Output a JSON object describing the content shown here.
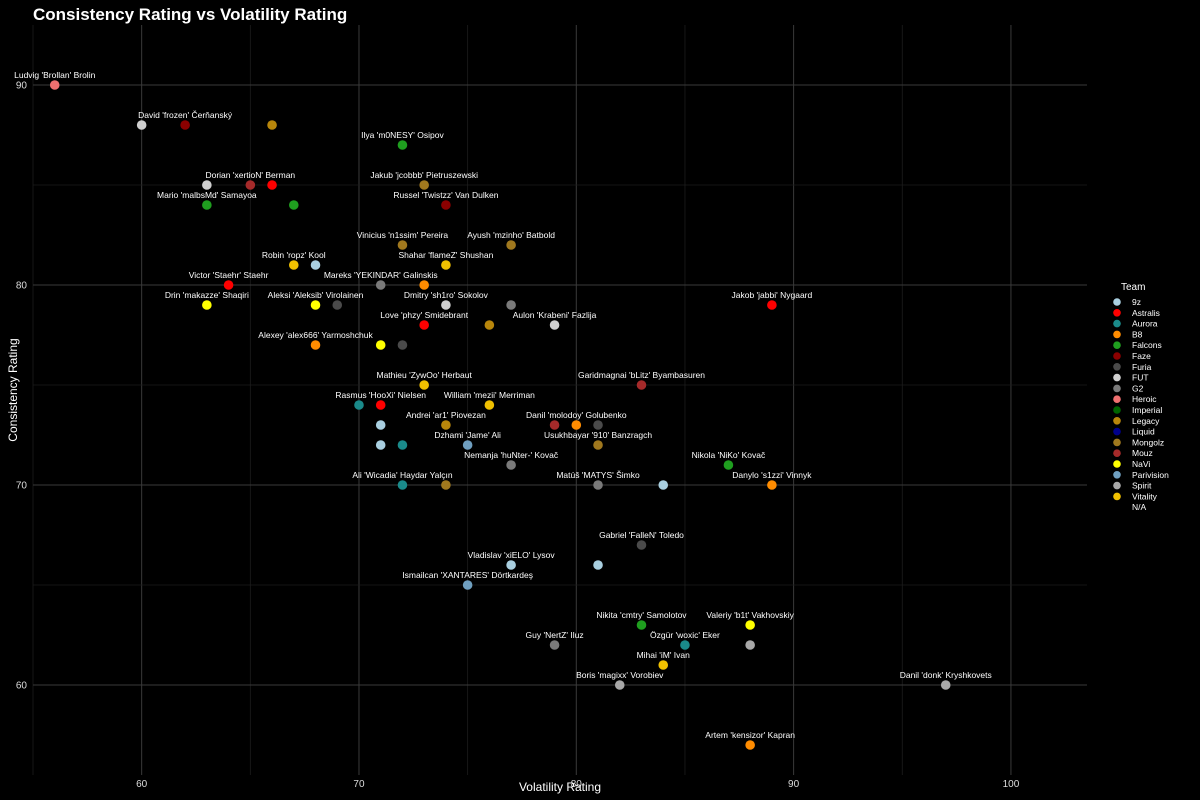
{
  "chart_data": {
    "type": "scatter",
    "title": "Consistency Rating vs Volatility Rating",
    "xlabel": "Volatility Rating",
    "ylabel": "Consistency Rating",
    "xlim": [
      55,
      103.5
    ],
    "ylim": [
      55.5,
      93
    ],
    "xticks": [
      60,
      70,
      80,
      90,
      100
    ],
    "yticks": [
      60,
      70,
      80,
      90
    ],
    "grid": true,
    "legend": {
      "title": "Team",
      "placement": "right",
      "entries": [
        {
          "name": "9z",
          "color": "#a9cfe0"
        },
        {
          "name": "Astralis",
          "color": "#ff0000"
        },
        {
          "name": "Aurora",
          "color": "#1a8a8a"
        },
        {
          "name": "B8",
          "color": "#ff8c00"
        },
        {
          "name": "Falcons",
          "color": "#1f9e1f"
        },
        {
          "name": "Faze",
          "color": "#8b0000"
        },
        {
          "name": "Furia",
          "color": "#4a4a4a"
        },
        {
          "name": "FUT",
          "color": "#cfcfcf"
        },
        {
          "name": "G2",
          "color": "#7a7a7a"
        },
        {
          "name": "Heroic",
          "color": "#f07070"
        },
        {
          "name": "Imperial",
          "color": "#006400"
        },
        {
          "name": "Legacy",
          "color": "#b8860b"
        },
        {
          "name": "Liquid",
          "color": "#00008b"
        },
        {
          "name": "Mongolz",
          "color": "#a0781e"
        },
        {
          "name": "Mouz",
          "color": "#a52a2a"
        },
        {
          "name": "NaVi",
          "color": "#ffff00"
        },
        {
          "name": "Parivision",
          "color": "#6f9fc0"
        },
        {
          "name": "Spirit",
          "color": "#a8a8a8"
        },
        {
          "name": "Vitality",
          "color": "#f0c000"
        },
        {
          "name": "N/A",
          "color": ""
        }
      ]
    },
    "points": [
      {
        "x": 56,
        "y": 90,
        "team": "Heroic",
        "label": "Ludvig 'Brollan' Brolin"
      },
      {
        "x": 60,
        "y": 88,
        "team": "FUT",
        "label": ""
      },
      {
        "x": 62,
        "y": 88,
        "team": "Faze",
        "label": "David 'frozen' Čerňanský"
      },
      {
        "x": 66,
        "y": 88,
        "team": "Legacy",
        "label": ""
      },
      {
        "x": 72,
        "y": 87,
        "team": "Falcons",
        "label": "Ilya 'm0NESY' Osipov"
      },
      {
        "x": 63,
        "y": 85,
        "team": "FUT",
        "label": ""
      },
      {
        "x": 65,
        "y": 85,
        "team": "Mouz",
        "label": "Dorian 'xertioN' Berman"
      },
      {
        "x": 66,
        "y": 85,
        "team": "Astralis",
        "label": ""
      },
      {
        "x": 73,
        "y": 85,
        "team": "Mongolz",
        "label": "Jakub 'jcobbb' Pietruszewski"
      },
      {
        "x": 63,
        "y": 84,
        "team": "Falcons",
        "label": "Mario 'malbsMd' Samayoa"
      },
      {
        "x": 67,
        "y": 84,
        "team": "Falcons",
        "label": ""
      },
      {
        "x": 74,
        "y": 84,
        "team": "Faze",
        "label": "Russel 'Twistzz' Van Dulken"
      },
      {
        "x": 72,
        "y": 82,
        "team": "Mongolz",
        "label": "Vinicius 'n1ssim' Pereira"
      },
      {
        "x": 77,
        "y": 82,
        "team": "Mongolz",
        "label": "Ayush 'mzinho' Batbold"
      },
      {
        "x": 67,
        "y": 81,
        "team": "Vitality",
        "label": "Robin 'ropz' Kool"
      },
      {
        "x": 68,
        "y": 81,
        "team": "9z",
        "label": ""
      },
      {
        "x": 74,
        "y": 81,
        "team": "Vitality",
        "label": "Shahar 'flameZ' Shushan"
      },
      {
        "x": 64,
        "y": 80,
        "team": "Astralis",
        "label": "Victor 'Staehr' Staehr"
      },
      {
        "x": 71,
        "y": 80,
        "team": "G2",
        "label": "Mareks 'YEKINDAR' Galinskis"
      },
      {
        "x": 73,
        "y": 80,
        "team": "B8",
        "label": ""
      },
      {
        "x": 63,
        "y": 79,
        "team": "NaVi",
        "label": "Drin 'makazze' Shaqiri"
      },
      {
        "x": 68,
        "y": 79,
        "team": "NaVi",
        "label": "Aleksi 'Aleksib' Virolainen"
      },
      {
        "x": 69,
        "y": 79,
        "team": "Furia",
        "label": ""
      },
      {
        "x": 74,
        "y": 79,
        "team": "FUT",
        "label": "Dmitry 'sh1ro' Sokolov"
      },
      {
        "x": 77,
        "y": 79,
        "team": "G2",
        "label": ""
      },
      {
        "x": 89,
        "y": 79,
        "team": "Astralis",
        "label": "Jakob 'jabbi' Nygaard"
      },
      {
        "x": 73,
        "y": 78,
        "team": "Astralis",
        "label": "Love 'phzy' Smidebrant"
      },
      {
        "x": 76,
        "y": 78,
        "team": "Legacy",
        "label": ""
      },
      {
        "x": 79,
        "y": 78,
        "team": "FUT",
        "label": "Aulon 'Krabeni' Fazlija"
      },
      {
        "x": 68,
        "y": 77,
        "team": "B8",
        "label": "Alexey 'alex666' Yarmoshchuk"
      },
      {
        "x": 71,
        "y": 77,
        "team": "NaVi",
        "label": ""
      },
      {
        "x": 72,
        "y": 77,
        "team": "Furia",
        "label": ""
      },
      {
        "x": 73,
        "y": 75,
        "team": "Vitality",
        "label": "Mathieu 'ZywOo' Herbaut"
      },
      {
        "x": 83,
        "y": 75,
        "team": "Mouz",
        "label": "Garidmagnai 'bLitz' Byambasuren"
      },
      {
        "x": 70,
        "y": 74,
        "team": "Aurora",
        "label": ""
      },
      {
        "x": 71,
        "y": 74,
        "team": "Astralis",
        "label": "Rasmus 'HooXi' Nielsen"
      },
      {
        "x": 76,
        "y": 74,
        "team": "Vitality",
        "label": "William 'mezii' Merriman"
      },
      {
        "x": 71,
        "y": 73,
        "team": "9z",
        "label": ""
      },
      {
        "x": 74,
        "y": 73,
        "team": "Legacy",
        "label": "Andrei 'ar1' Piovezan"
      },
      {
        "x": 79,
        "y": 73,
        "team": "Mouz",
        "label": ""
      },
      {
        "x": 80,
        "y": 73,
        "team": "B8",
        "label": "Danil 'molodoy' Golubenko"
      },
      {
        "x": 81,
        "y": 73,
        "team": "Furia",
        "label": ""
      },
      {
        "x": 71,
        "y": 72,
        "team": "9z",
        "label": ""
      },
      {
        "x": 72,
        "y": 72,
        "team": "Aurora",
        "label": ""
      },
      {
        "x": 75,
        "y": 72,
        "team": "Parivision",
        "label": "Dzhami 'Jame' Ali"
      },
      {
        "x": 81,
        "y": 72,
        "team": "Mongolz",
        "label": "Usukhbayar '910' Banzragch"
      },
      {
        "x": 77,
        "y": 71,
        "team": "G2",
        "label": "Nemanja 'huNter-' Kovač"
      },
      {
        "x": 87,
        "y": 71,
        "team": "Falcons",
        "label": "Nikola 'NiKo' Kovač"
      },
      {
        "x": 72,
        "y": 70,
        "team": "Aurora",
        "label": "Ali 'Wicadia' Haydar Yalçın"
      },
      {
        "x": 74,
        "y": 70,
        "team": "Mongolz",
        "label": ""
      },
      {
        "x": 81,
        "y": 70,
        "team": "G2",
        "label": "Matúš 'MATYS' Šimko"
      },
      {
        "x": 84,
        "y": 70,
        "team": "9z",
        "label": ""
      },
      {
        "x": 89,
        "y": 70,
        "team": "B8",
        "label": "Danylo 's1zzi' Vinnyk"
      },
      {
        "x": 83,
        "y": 67,
        "team": "Furia",
        "label": "Gabriel 'FalleN' Toledo"
      },
      {
        "x": 77,
        "y": 66,
        "team": "9z",
        "label": "Vladislav 'xiELO' Lysov"
      },
      {
        "x": 81,
        "y": 66,
        "team": "9z",
        "label": ""
      },
      {
        "x": 75,
        "y": 65,
        "team": "Parivision",
        "label": "Ismailcan 'XANTARES' Dörtkardeş"
      },
      {
        "x": 83,
        "y": 63,
        "team": "Falcons",
        "label": "Nikita 'cmtry' Samolotov"
      },
      {
        "x": 88,
        "y": 63,
        "team": "NaVi",
        "label": "Valeriy 'b1t' Vakhovskiy"
      },
      {
        "x": 79,
        "y": 62,
        "team": "G2",
        "label": "Guy 'NertZ' Iluz"
      },
      {
        "x": 85,
        "y": 62,
        "team": "Aurora",
        "label": "Özgür 'woxic' Eker"
      },
      {
        "x": 88,
        "y": 62,
        "team": "Spirit",
        "label": ""
      },
      {
        "x": 84,
        "y": 61,
        "team": "Vitality",
        "label": "Mihai 'iM' Ivan"
      },
      {
        "x": 82,
        "y": 60,
        "team": "Spirit",
        "label": "Boris 'magixx' Vorobiev"
      },
      {
        "x": 97,
        "y": 60,
        "team": "Spirit",
        "label": "Danil 'donk' Kryshkovets"
      },
      {
        "x": 88,
        "y": 57,
        "team": "B8",
        "label": "Artem 'kensizor' Kapran"
      }
    ]
  }
}
